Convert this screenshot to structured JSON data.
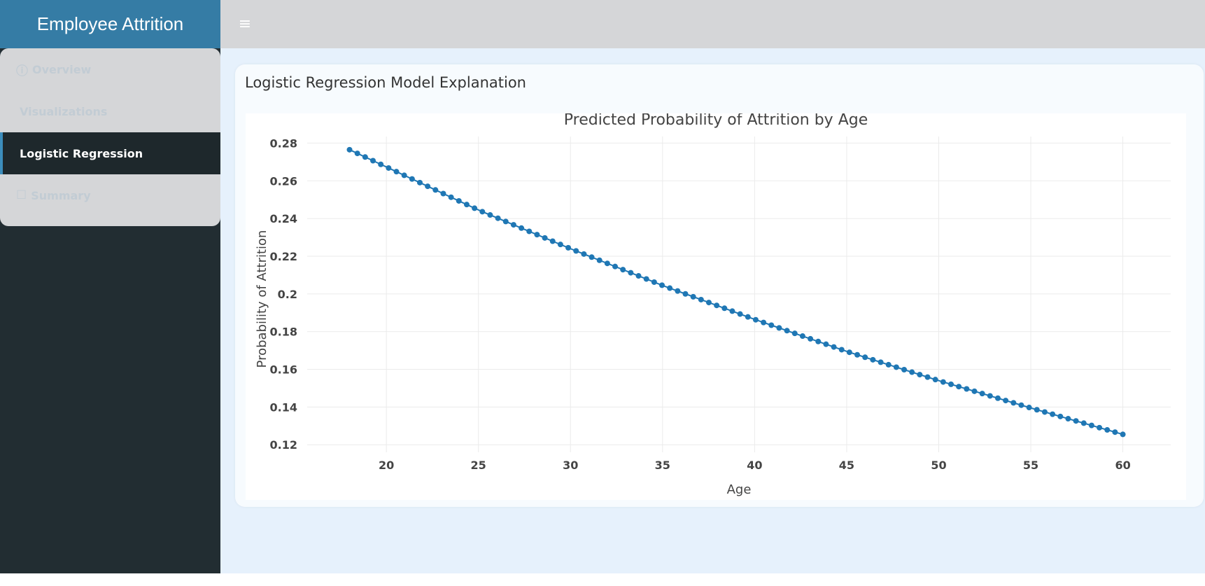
{
  "app": {
    "title": "Employee Attrition",
    "menu_toggle_icon": "≡"
  },
  "sidebar": {
    "items": [
      {
        "label": "Overview",
        "icon": "info-circle-icon",
        "glyph": "ⓘ",
        "active": false
      },
      {
        "label": "Visualizations",
        "icon": "",
        "glyph": "",
        "active": false
      },
      {
        "label": "Logistic Regression",
        "icon": "",
        "glyph": "",
        "active": true
      },
      {
        "label": "Summary",
        "icon": "file-icon",
        "glyph": "☐",
        "active": false
      }
    ]
  },
  "main": {
    "card_title": "Logistic Regression Model Explanation"
  },
  "colors": {
    "brand": "#357ca5",
    "series": "#1f77b4",
    "active_accent": "#3c8dbc",
    "sidebar_bg": "#222d32",
    "content_bg": "#e6f1fc"
  },
  "chart_data": {
    "type": "scatter",
    "mode": "lines+markers",
    "title": "Predicted Probability of Attrition by Age",
    "xlabel": "Age",
    "ylabel": "Probability of Attrition",
    "xlim": [
      15.7,
      62.6
    ],
    "ylim": [
      0.116,
      0.2835
    ],
    "x_ticks": [
      20,
      25,
      30,
      35,
      40,
      45,
      50,
      55,
      60
    ],
    "y_ticks": [
      0.12,
      0.14,
      0.16,
      0.18,
      0.2,
      0.22,
      0.24,
      0.26,
      0.28
    ],
    "y_tick_labels": [
      "0.12",
      "0.14",
      "0.16",
      "0.18",
      "0.2",
      "0.22",
      "0.24",
      "0.26",
      "0.28"
    ],
    "grid": true,
    "series": [
      {
        "color": "#1f77b4",
        "x_start": 18,
        "x_end": 60,
        "n_points": 100,
        "y_at_x_start": 0.2765,
        "y_at_x_end": 0.1255,
        "sample_points": [
          [
            18,
            0.2765
          ],
          [
            25,
            0.2445
          ],
          [
            30,
            0.224
          ],
          [
            35,
            0.2045
          ],
          [
            40,
            0.1865
          ],
          [
            45,
            0.1695
          ],
          [
            50,
            0.154
          ],
          [
            55,
            0.1395
          ],
          [
            60,
            0.1255
          ]
        ]
      }
    ]
  }
}
